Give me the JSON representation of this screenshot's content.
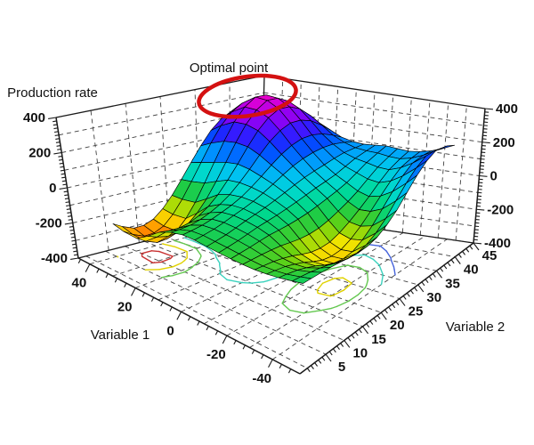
{
  "chart_data": {
    "type": "surface",
    "annotation": {
      "label": "Optimal point",
      "ellipse_color": "#d41111"
    },
    "axes": {
      "x": {
        "label": "Variable 1",
        "ticks": [
          40,
          20,
          0,
          -20,
          -40
        ],
        "range": [
          -40,
          40
        ]
      },
      "y": {
        "label": "Variable 2",
        "ticks": [
          5,
          10,
          15,
          20,
          25,
          30,
          35,
          40,
          45
        ],
        "range": [
          5,
          45
        ]
      },
      "z": {
        "label": "Production rate",
        "ticks": [
          400,
          200,
          0,
          -200,
          -400
        ],
        "range": [
          -400,
          400
        ]
      }
    },
    "grid_x": [
      40,
      30,
      20,
      10,
      0,
      -10,
      -20,
      -30,
      -40
    ],
    "grid_y": [
      5,
      10,
      15,
      20,
      25,
      30,
      35,
      40,
      45
    ],
    "z_grid": [
      [
        -213,
        -237,
        -142,
        -98,
        -105,
        -115,
        -118,
        -104,
        -78
      ],
      [
        -268,
        -295,
        -158,
        -88,
        -88,
        -105,
        -131,
        -126,
        -85
      ],
      [
        -247,
        -265,
        -129,
        -59,
        -59,
        -91,
        -159,
        -167,
        -98
      ],
      [
        -140,
        -136,
        -47,
        -16,
        -33,
        -88,
        -199,
        -218,
        -114
      ],
      [
        19,
        60,
        90,
        57,
        3,
        -74,
        -202,
        -218,
        -96
      ],
      [
        176,
        260,
        244,
        141,
        41,
        -46,
        -147,
        -135,
        -12
      ],
      [
        262,
        371,
        331,
        188,
        65,
        -10,
        -61,
        -3,
        121
      ],
      [
        235,
        332,
        294,
        172,
        86,
        52,
        35,
        98,
        201
      ],
      [
        132,
        194,
        171,
        107,
        85,
        95,
        83,
        105,
        158
      ]
    ],
    "optimal_point": {
      "x": 30,
      "y": 35,
      "z": 371,
      "label": "Optimal point"
    },
    "colormap": [
      [
        -400,
        "#c00000"
      ],
      [
        -350,
        "#e62800"
      ],
      [
        -300,
        "#ff5a00"
      ],
      [
        -250,
        "#ffc400"
      ],
      [
        -200,
        "#eee600"
      ],
      [
        -150,
        "#6ad20e"
      ],
      [
        -100,
        "#1ecc46"
      ],
      [
        -50,
        "#00d88c"
      ],
      [
        0,
        "#00d8cc"
      ],
      [
        50,
        "#00c4f0"
      ],
      [
        100,
        "#0090ff"
      ],
      [
        150,
        "#0050ff"
      ],
      [
        200,
        "#2222ff"
      ],
      [
        250,
        "#5c0cff"
      ],
      [
        300,
        "#9900f0"
      ],
      [
        350,
        "#d800d8"
      ],
      [
        400,
        "#ff00b4"
      ]
    ],
    "contour_levels": [
      {
        "level": -280,
        "color": "#c83232"
      },
      {
        "level": -215,
        "color": "#e0d200"
      },
      {
        "level": -145,
        "color": "#64c850"
      },
      {
        "level": -65,
        "color": "#3cd2be"
      },
      {
        "level": 15,
        "color": "#4664dc"
      }
    ]
  },
  "style": {
    "background": "#ffffff",
    "grid_color": "#404040",
    "edge_color": "#1a1a1a",
    "text_color": "#111111"
  }
}
